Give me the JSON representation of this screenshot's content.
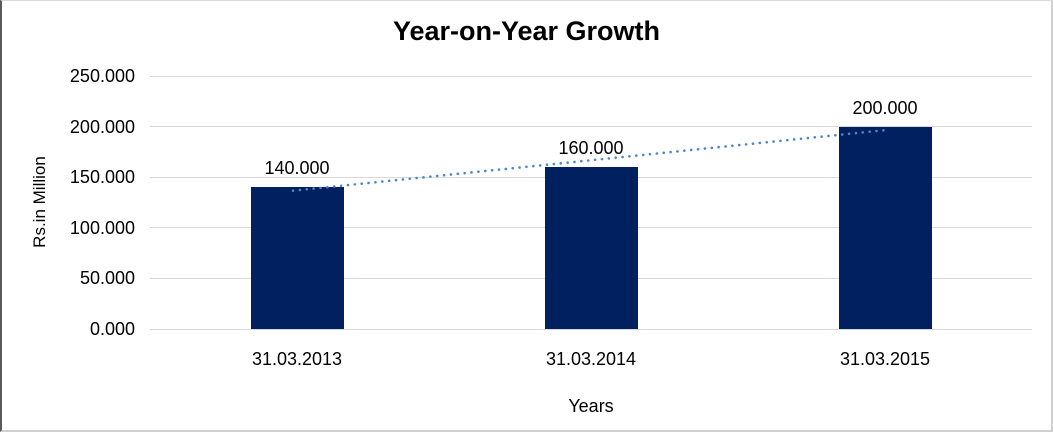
{
  "chart_data": {
    "type": "bar",
    "title": "Year-on-Year Growth",
    "xlabel": "Years",
    "ylabel": "Rs.in Million",
    "categories": [
      "31.03.2013",
      "31.03.2014",
      "31.03.2015"
    ],
    "values": [
      140,
      160,
      200
    ],
    "data_labels": [
      "140.000",
      "160.000",
      "200.000"
    ],
    "yticks": [
      0,
      50,
      100,
      150,
      200,
      250
    ],
    "ytick_labels": [
      "0.000",
      "50.000",
      "100.000",
      "150.000",
      "200.000",
      "250.000"
    ],
    "ylim": [
      0,
      250
    ],
    "grid": true,
    "legend": false,
    "bar_color": "#002060",
    "gridline_color": "#d9d9d9",
    "trendline": {
      "type": "linear",
      "style": "dotted",
      "color": "#4a86c8"
    }
  }
}
